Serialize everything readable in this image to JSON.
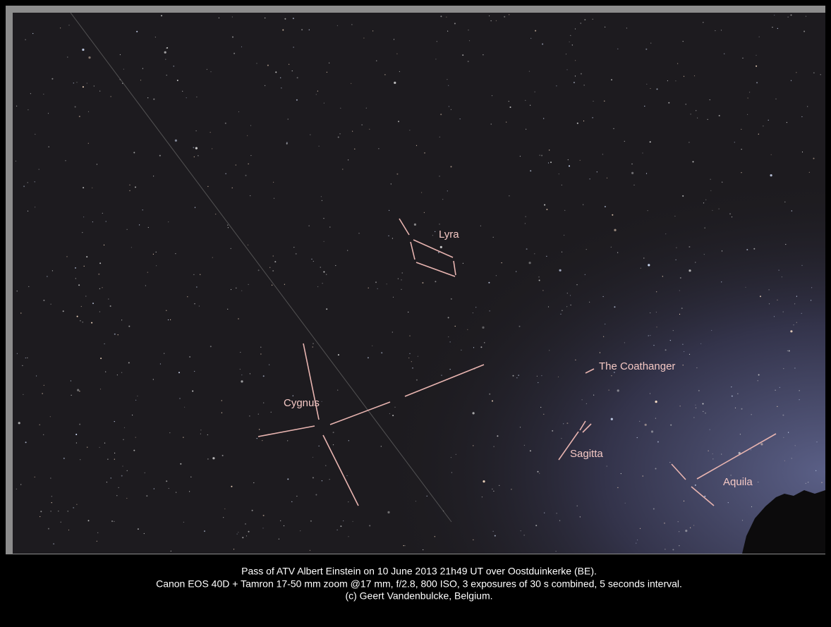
{
  "labels": {
    "lyra": "Lyra",
    "coathanger": "The Coathanger",
    "cygnus": "Cygnus",
    "sagitta": "Sagitta",
    "aquila": "Aquila"
  },
  "caption": [
    "Pass of ATV Albert Einstein on 10 June 2013 21h49 UT over Oostduinkerke (BE).",
    "Canon EOS 40D + Tamron 17-50 mm zoom @17 mm, f/2.8, 800 ISO, 3 exposures of 30 s combined, 5 seconds interval.",
    "(c) Geert Vandenbulcke, Belgium."
  ]
}
